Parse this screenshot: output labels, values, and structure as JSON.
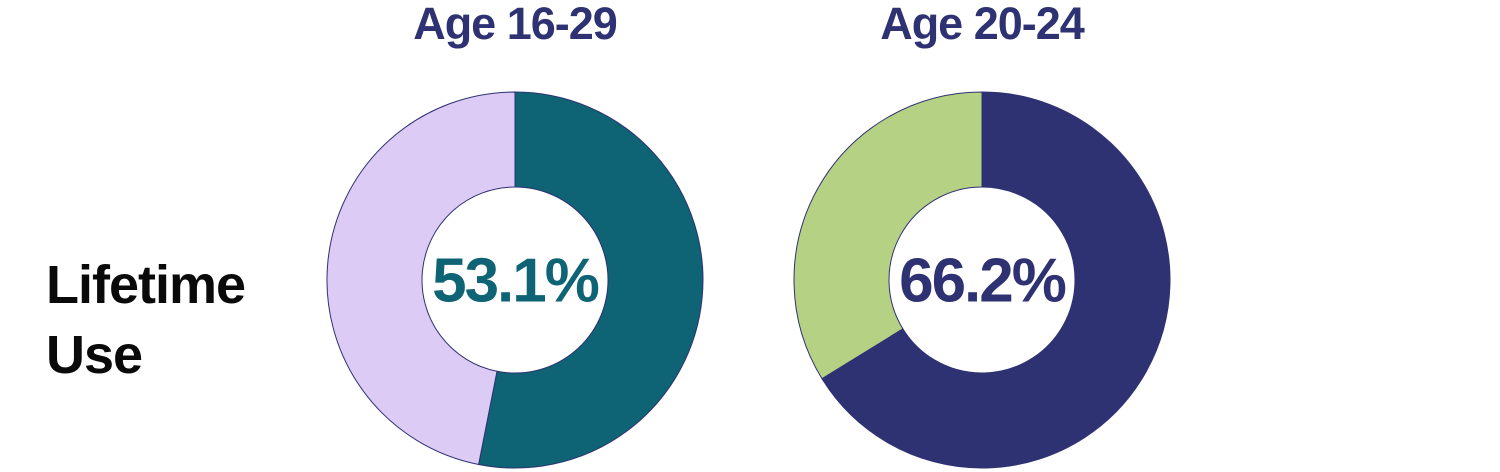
{
  "row_label": {
    "line1": "Lifetime",
    "line2": "Use"
  },
  "theme": {
    "background": "#ffffff",
    "title_color": "#2E3272",
    "row_label_color": "#0A0A0A"
  },
  "chart_data": [
    {
      "type": "donut",
      "title": "Age 16-29",
      "value_label": "53.1%",
      "value_pct": 53.1,
      "series": [
        {
          "name": "Lifetime use",
          "value": 53.1,
          "color": "#0E6374"
        },
        {
          "name": "Remainder",
          "value": 46.9,
          "color": "#DCCBF5"
        }
      ],
      "value_color": "#0E6374",
      "outline_color": "#2E3272",
      "start_angle_deg": 0,
      "direction": "clockwise",
      "hole_ratio": 0.495,
      "legend": "none"
    },
    {
      "type": "donut",
      "title": "Age 20-24",
      "value_label": "66.2%",
      "value_pct": 66.2,
      "series": [
        {
          "name": "Lifetime use",
          "value": 66.2,
          "color": "#2E3272"
        },
        {
          "name": "Remainder",
          "value": 33.8,
          "color": "#B5D183"
        }
      ],
      "value_color": "#2E3272",
      "outline_color": "#2E3272",
      "start_angle_deg": 0,
      "direction": "clockwise",
      "hole_ratio": 0.495,
      "legend": "none"
    }
  ]
}
